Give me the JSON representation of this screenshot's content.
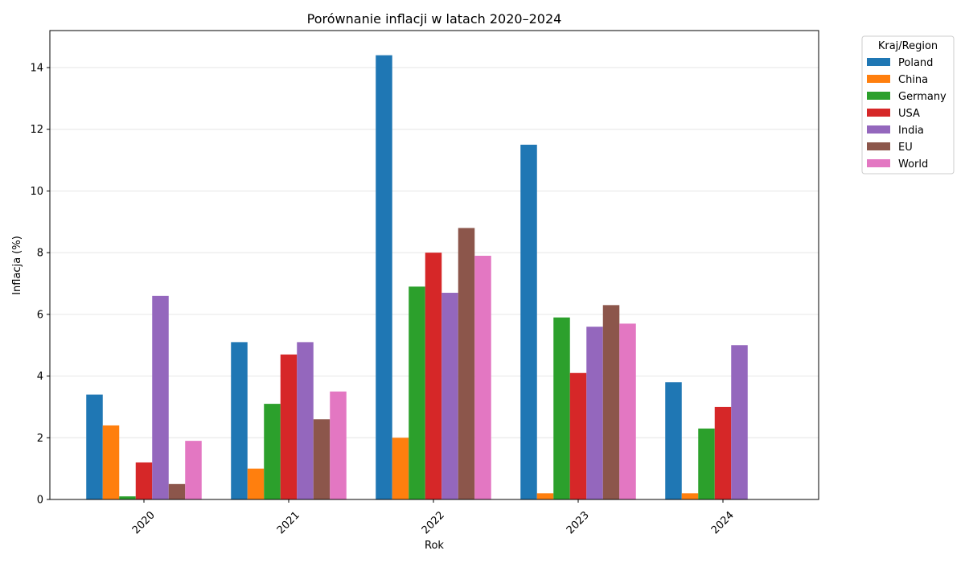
{
  "chart_data": {
    "type": "bar",
    "title": "Porównanie inflacji w latach 2020–2024",
    "xlabel": "Rok",
    "ylabel": "Inflacja (%)",
    "categories": [
      "2020",
      "2021",
      "2022",
      "2023",
      "2024"
    ],
    "ylim": [
      0,
      15.2
    ],
    "yticks": [
      0,
      2,
      4,
      6,
      8,
      10,
      12,
      14
    ],
    "grid": "y",
    "legend": {
      "title": "Kraj/Region",
      "placement": "outside-top-right"
    },
    "series": [
      {
        "name": "Poland",
        "color": "#1f77b4",
        "values": [
          3.4,
          5.1,
          14.4,
          11.5,
          3.8
        ]
      },
      {
        "name": "China",
        "color": "#ff7f0e",
        "values": [
          2.4,
          1.0,
          2.0,
          0.2,
          0.2
        ]
      },
      {
        "name": "Germany",
        "color": "#2ca02c",
        "values": [
          0.1,
          3.1,
          6.9,
          5.9,
          2.3
        ]
      },
      {
        "name": "USA",
        "color": "#d62728",
        "values": [
          1.2,
          4.7,
          8.0,
          4.1,
          3.0
        ]
      },
      {
        "name": "India",
        "color": "#9467bd",
        "values": [
          6.6,
          5.1,
          6.7,
          5.6,
          5.0
        ]
      },
      {
        "name": "EU",
        "color": "#8c564b",
        "values": [
          0.5,
          2.6,
          8.8,
          6.3,
          null
        ]
      },
      {
        "name": "World",
        "color": "#e377c2",
        "values": [
          1.9,
          3.5,
          7.9,
          5.7,
          null
        ]
      }
    ]
  }
}
